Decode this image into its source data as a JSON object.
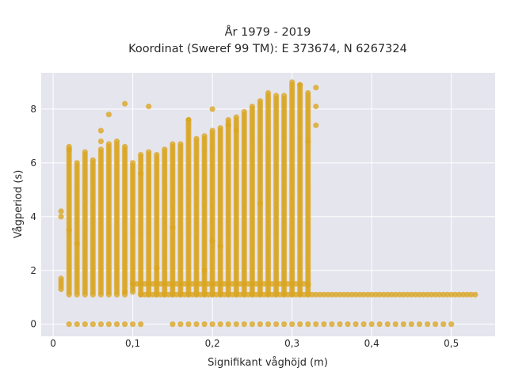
{
  "chart_data": {
    "type": "scatter",
    "title_lines": [
      "År 1979 - 2019",
      "Koordinat (Sweref 99 TM): E 373674, N 6267324"
    ],
    "xlabel": "Signifikant våghöjd (m)",
    "ylabel": "Vågperiod (s)",
    "xlim": [
      -0.015,
      0.555
    ],
    "ylim": [
      -0.45,
      9.35
    ],
    "xticks": [
      {
        "value": 0,
        "label": "0"
      },
      {
        "value": 0.1,
        "label": "0,1"
      },
      {
        "value": 0.2,
        "label": "0,2"
      },
      {
        "value": 0.3,
        "label": "0,3"
      },
      {
        "value": 0.4,
        "label": "0,4"
      },
      {
        "value": 0.5,
        "label": "0,5"
      }
    ],
    "yticks": [
      {
        "value": 0,
        "label": "0"
      },
      {
        "value": 2,
        "label": "2"
      },
      {
        "value": 4,
        "label": "4"
      },
      {
        "value": 6,
        "label": "6"
      },
      {
        "value": 8,
        "label": "8"
      }
    ],
    "grid": true,
    "background_color": "#e5e5ee",
    "marker_color": "#daa520",
    "columns": [
      {
        "x": 0.01,
        "ymin": 1.3,
        "ymax": 1.7
      },
      {
        "x": 0.02,
        "ymin": 1.1,
        "ymax": 6.6
      },
      {
        "x": 0.03,
        "ymin": 1.1,
        "ymax": 6.0
      },
      {
        "x": 0.04,
        "ymin": 1.1,
        "ymax": 6.4
      },
      {
        "x": 0.05,
        "ymin": 1.1,
        "ymax": 6.1
      },
      {
        "x": 0.06,
        "ymin": 1.1,
        "ymax": 6.5
      },
      {
        "x": 0.07,
        "ymin": 1.1,
        "ymax": 6.7
      },
      {
        "x": 0.08,
        "ymin": 1.1,
        "ymax": 6.8
      },
      {
        "x": 0.09,
        "ymin": 1.1,
        "ymax": 6.6
      },
      {
        "x": 0.1,
        "ymin": 1.2,
        "ymax": 6.0
      },
      {
        "x": 0.11,
        "ymin": 1.1,
        "ymax": 6.3
      },
      {
        "x": 0.12,
        "ymin": 1.1,
        "ymax": 6.4
      },
      {
        "x": 0.13,
        "ymin": 1.1,
        "ymax": 6.3
      },
      {
        "x": 0.14,
        "ymin": 1.1,
        "ymax": 6.5
      },
      {
        "x": 0.15,
        "ymin": 1.1,
        "ymax": 6.7
      },
      {
        "x": 0.16,
        "ymin": 1.1,
        "ymax": 6.7
      },
      {
        "x": 0.17,
        "ymin": 1.1,
        "ymax": 7.6
      },
      {
        "x": 0.18,
        "ymin": 1.1,
        "ymax": 6.9
      },
      {
        "x": 0.19,
        "ymin": 1.1,
        "ymax": 7.0
      },
      {
        "x": 0.2,
        "ymin": 1.1,
        "ymax": 7.2
      },
      {
        "x": 0.21,
        "ymin": 1.1,
        "ymax": 7.3
      },
      {
        "x": 0.22,
        "ymin": 1.1,
        "ymax": 7.6
      },
      {
        "x": 0.23,
        "ymin": 1.1,
        "ymax": 7.7
      },
      {
        "x": 0.24,
        "ymin": 1.1,
        "ymax": 7.9
      },
      {
        "x": 0.25,
        "ymin": 1.1,
        "ymax": 8.1
      },
      {
        "x": 0.26,
        "ymin": 1.1,
        "ymax": 8.3
      },
      {
        "x": 0.27,
        "ymin": 1.1,
        "ymax": 8.6
      },
      {
        "x": 0.28,
        "ymin": 1.1,
        "ymax": 8.5
      },
      {
        "x": 0.29,
        "ymin": 1.1,
        "ymax": 8.5
      },
      {
        "x": 0.3,
        "ymin": 1.1,
        "ymax": 8.9
      },
      {
        "x": 0.31,
        "ymin": 1.1,
        "ymax": 8.9
      },
      {
        "x": 0.32,
        "ymin": 1.1,
        "ymax": 8.6
      }
    ],
    "low_bands": [
      {
        "y": 1.5,
        "xmin": 0.1,
        "xmax": 0.32
      },
      {
        "y": 1.1,
        "xmin": 0.11,
        "xmax": 0.53
      }
    ],
    "zero_groups": [
      {
        "xmin": 0.02,
        "xmax": 0.07
      },
      {
        "xmin": 0.08,
        "xmax": 0.11
      },
      {
        "xmin": 0.15,
        "xmax": 0.5
      }
    ],
    "outliers": [
      {
        "x": 0.01,
        "y": 4.2
      },
      {
        "x": 0.01,
        "y": 4.0
      },
      {
        "x": 0.02,
        "y": 6.5
      },
      {
        "x": 0.02,
        "y": 3.5
      },
      {
        "x": 0.06,
        "y": 7.2
      },
      {
        "x": 0.06,
        "y": 6.8
      },
      {
        "x": 0.07,
        "y": 7.8
      },
      {
        "x": 0.09,
        "y": 8.2
      },
      {
        "x": 0.12,
        "y": 8.1
      },
      {
        "x": 0.11,
        "y": 5.6
      },
      {
        "x": 0.13,
        "y": 2.1
      },
      {
        "x": 0.15,
        "y": 3.6
      },
      {
        "x": 0.17,
        "y": 7.6
      },
      {
        "x": 0.19,
        "y": 2.0
      },
      {
        "x": 0.2,
        "y": 8.0
      },
      {
        "x": 0.22,
        "y": 7.4
      },
      {
        "x": 0.23,
        "y": 7.2
      },
      {
        "x": 0.2,
        "y": 3.1
      },
      {
        "x": 0.21,
        "y": 2.9
      },
      {
        "x": 0.26,
        "y": 4.5
      },
      {
        "x": 0.3,
        "y": 9.0
      },
      {
        "x": 0.31,
        "y": 8.9
      },
      {
        "x": 0.32,
        "y": 6.8
      },
      {
        "x": 0.32,
        "y": 1.45
      },
      {
        "x": 0.33,
        "y": 8.8
      },
      {
        "x": 0.33,
        "y": 8.1
      },
      {
        "x": 0.33,
        "y": 7.4
      },
      {
        "x": 0.03,
        "y": 3.0
      },
      {
        "x": 0.09,
        "y": 1.2
      }
    ]
  }
}
